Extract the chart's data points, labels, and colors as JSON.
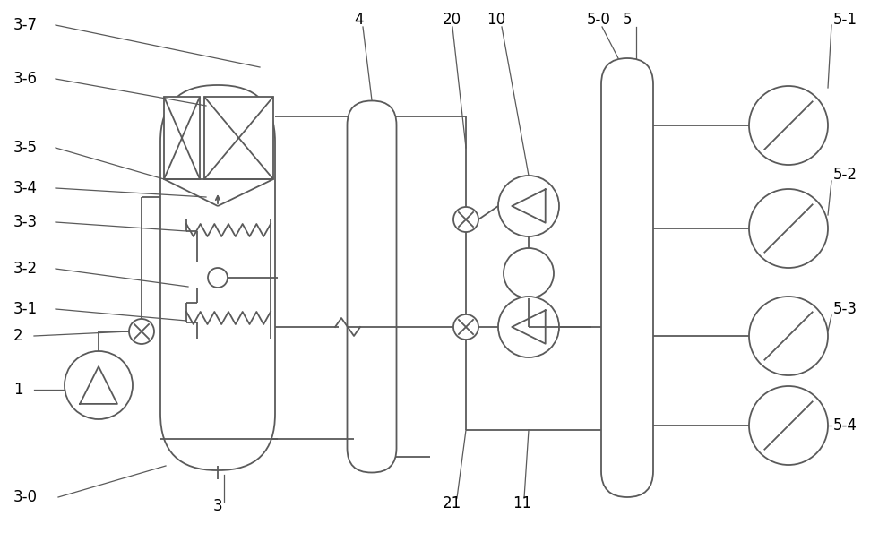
{
  "bg_color": "#ffffff",
  "line_color": "#5a5a5a",
  "text_color": "#000000",
  "lw": 1.3,
  "fig_width": 10.0,
  "fig_height": 5.95
}
